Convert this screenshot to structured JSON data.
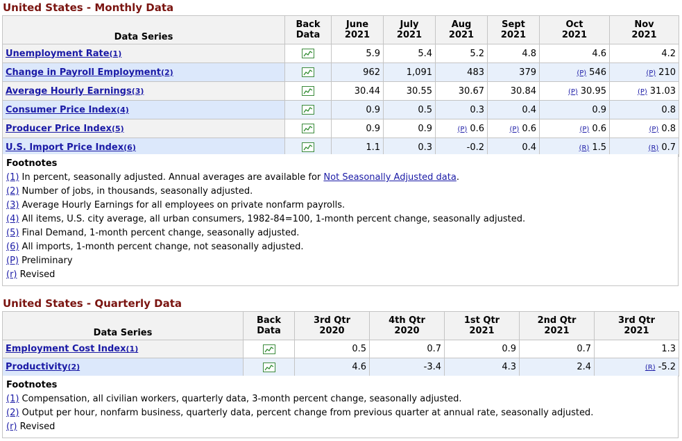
{
  "monthly": {
    "title": "United States - Monthly Data",
    "headers": [
      "Data Series",
      "Back Data",
      "June 2021",
      "July 2021",
      "Aug 2021",
      "Sept 2021",
      "Oct 2021",
      "Nov 2021"
    ],
    "headers_lines": [
      [
        "Data Series"
      ],
      [
        "Back",
        "Data"
      ],
      [
        "June",
        "2021"
      ],
      [
        "July",
        "2021"
      ],
      [
        "Aug",
        "2021"
      ],
      [
        "Sept",
        "2021"
      ],
      [
        "Oct",
        "2021"
      ],
      [
        "Nov",
        "2021"
      ]
    ],
    "rows": [
      {
        "series": "Unemployment Rate",
        "ref": "(1)",
        "values": [
          {
            "v": "5.9"
          },
          {
            "v": "5.4"
          },
          {
            "v": "5.2"
          },
          {
            "v": "4.8"
          },
          {
            "v": "4.6"
          },
          {
            "v": "4.2"
          }
        ]
      },
      {
        "series": "Change in Payroll Employment",
        "ref": "(2)",
        "values": [
          {
            "v": "962"
          },
          {
            "v": "1,091"
          },
          {
            "v": "483"
          },
          {
            "v": "379"
          },
          {
            "b": "(P)",
            "v": "546"
          },
          {
            "b": "(P)",
            "v": "210"
          }
        ]
      },
      {
        "series": "Average Hourly Earnings",
        "ref": "(3)",
        "values": [
          {
            "v": "30.44"
          },
          {
            "v": "30.55"
          },
          {
            "v": "30.67"
          },
          {
            "v": "30.84"
          },
          {
            "b": "(P)",
            "v": "30.95"
          },
          {
            "b": "(P)",
            "v": "31.03"
          }
        ]
      },
      {
        "series": "Consumer Price Index",
        "ref": "(4)",
        "values": [
          {
            "v": "0.9"
          },
          {
            "v": "0.5"
          },
          {
            "v": "0.3"
          },
          {
            "v": "0.4"
          },
          {
            "v": "0.9"
          },
          {
            "v": "0.8"
          }
        ]
      },
      {
        "series": "Producer Price Index",
        "ref": "(5)",
        "values": [
          {
            "v": "0.9"
          },
          {
            "v": "0.9"
          },
          {
            "b": "(P)",
            "v": "0.6"
          },
          {
            "b": "(P)",
            "v": "0.6"
          },
          {
            "b": "(P)",
            "v": "0.6"
          },
          {
            "b": "(P)",
            "v": "0.8"
          }
        ]
      },
      {
        "series": "U.S. Import Price Index",
        "ref": "(6)",
        "values": [
          {
            "v": "1.1"
          },
          {
            "v": "0.3"
          },
          {
            "v": "-0.2"
          },
          {
            "v": "0.4"
          },
          {
            "b": "(R)",
            "v": "1.5"
          },
          {
            "b": "(R)",
            "v": "0.7"
          }
        ]
      }
    ],
    "footnotes_title": "Footnotes",
    "footnotes": [
      {
        "label": "(1)",
        "text": " In percent, seasonally adjusted. Annual averages are available for ",
        "link": "Not Seasonally Adjusted data",
        "after": "."
      },
      {
        "label": "(2)",
        "text": " Number of jobs, in thousands, seasonally adjusted."
      },
      {
        "label": "(3)",
        "text": " Average Hourly Earnings for all employees on private nonfarm payrolls."
      },
      {
        "label": "(4)",
        "text": " All items, U.S. city average, all urban consumers, 1982-84=100, 1-month percent change, seasonally adjusted."
      },
      {
        "label": "(5)",
        "text": " Final Demand, 1-month percent change, seasonally adjusted."
      },
      {
        "label": "(6)",
        "text": " All imports, 1-month percent change, not seasonally adjusted."
      },
      {
        "label": "(P)",
        "text": " Preliminary"
      },
      {
        "label": "(r)",
        "text": " Revised"
      }
    ]
  },
  "quarterly": {
    "title": "United States - Quarterly Data",
    "headers_lines": [
      [
        "Data Series"
      ],
      [
        "Back",
        "Data"
      ],
      [
        "3rd Qtr",
        "2020"
      ],
      [
        "4th Qtr",
        "2020"
      ],
      [
        "1st Qtr",
        "2021"
      ],
      [
        "2nd Qtr",
        "2021"
      ],
      [
        "3rd Qtr",
        "2021"
      ]
    ],
    "rows": [
      {
        "series": "Employment Cost Index",
        "ref": "(1)",
        "values": [
          {
            "v": "0.5"
          },
          {
            "v": "0.7"
          },
          {
            "v": "0.9"
          },
          {
            "v": "0.7"
          },
          {
            "v": "1.3"
          }
        ]
      },
      {
        "series": "Productivity",
        "ref": "(2)",
        "values": [
          {
            "v": "4.6"
          },
          {
            "v": "-3.4"
          },
          {
            "v": "4.3"
          },
          {
            "v": "2.4"
          },
          {
            "b": "(R)",
            "v": "-5.2"
          }
        ]
      }
    ],
    "footnotes_title": "Footnotes",
    "footnotes": [
      {
        "label": "(1)",
        "text": " Compensation, all civilian workers, quarterly data, 3-month percent change, seasonally adjusted."
      },
      {
        "label": "(2)",
        "text": " Output per hour, nonfarm business, quarterly data, percent change from previous quarter at annual rate, seasonally adjusted."
      },
      {
        "label": "(r)",
        "text": " Revised"
      }
    ]
  },
  "icons": {
    "back_data": "line-chart-icon"
  },
  "colors": {
    "title": "#7a1410",
    "link": "#1a1aa6",
    "header_bg": "#f2f2f2",
    "alt_row_bg": "#e8f0fb"
  }
}
